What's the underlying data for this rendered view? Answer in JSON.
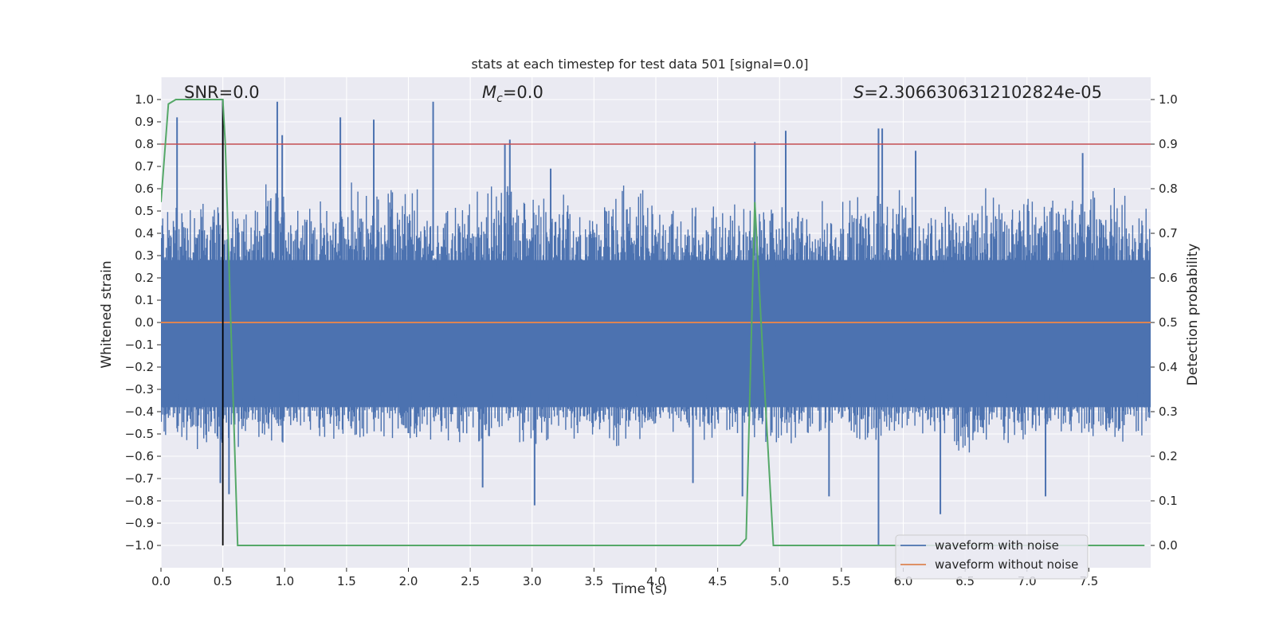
{
  "chart_data": {
    "type": "line",
    "title": "stats at each timestep for test data 501 [signal=0.0]",
    "xlabel": "Time (s)",
    "ylabel": "Whitened strain",
    "ylabel_right": "Detection probability",
    "xlim": [
      0.0,
      8.0
    ],
    "ylim": [
      -1.1,
      1.1
    ],
    "ylim_right": [
      -0.05,
      1.05
    ],
    "x_ticks": [
      0.0,
      0.5,
      1.0,
      1.5,
      2.0,
      2.5,
      3.0,
      3.5,
      4.0,
      4.5,
      5.0,
      5.5,
      6.0,
      6.5,
      7.0,
      7.5
    ],
    "y_ticks": [
      1.0,
      0.9,
      0.8,
      0.7,
      0.6,
      0.5,
      0.4,
      0.3,
      0.2,
      0.1,
      0.0,
      -0.1,
      -0.2,
      -0.3,
      -0.4,
      -0.5,
      -0.6,
      -0.7,
      -0.8,
      -0.9,
      -1.0
    ],
    "y_ticks_right": [
      1.0,
      0.9,
      0.8,
      0.7,
      0.6,
      0.5,
      0.4,
      0.3,
      0.2,
      0.1,
      0.0
    ],
    "annotations": {
      "snr": "SNR=0.0",
      "mc_symbol": "M",
      "mc_sub": "c",
      "mc_value": "=0.0",
      "s_symbol": "S",
      "s_value": "=2.3066306312102824e-05"
    },
    "threshold": {
      "axis": "right",
      "value": 0.9,
      "color": "#c44e52"
    },
    "marker_line": {
      "x": 0.5,
      "y_range": [
        -1.0,
        1.0
      ],
      "color": "#000000"
    },
    "noise_envelope": {
      "x": [
        0.0,
        0.25,
        0.5,
        0.75,
        1.0,
        1.25,
        1.5,
        1.75,
        2.0,
        2.25,
        2.5,
        2.75,
        3.0,
        3.25,
        3.5,
        3.75,
        4.0,
        4.25,
        4.5,
        4.75,
        5.0,
        5.25,
        5.5,
        5.75,
        6.0,
        6.25,
        6.5,
        6.75,
        7.0,
        7.25,
        7.5,
        7.75,
        8.0
      ],
      "upper": [
        0.55,
        0.6,
        0.5,
        0.55,
        0.62,
        0.5,
        0.6,
        0.58,
        0.62,
        0.5,
        0.55,
        0.65,
        0.6,
        0.55,
        0.5,
        0.6,
        0.55,
        0.5,
        0.55,
        0.5,
        0.55,
        0.5,
        0.55,
        0.6,
        0.55,
        0.5,
        0.55,
        0.6,
        0.55,
        0.6,
        0.62,
        0.6,
        0.6
      ],
      "lower": [
        -0.5,
        -0.55,
        -0.6,
        -0.5,
        -0.55,
        -0.5,
        -0.55,
        -0.5,
        -0.55,
        -0.5,
        -0.55,
        -0.5,
        -0.55,
        -0.5,
        -0.5,
        -0.55,
        -0.5,
        -0.5,
        -0.55,
        -0.5,
        -0.55,
        -0.5,
        -0.5,
        -0.55,
        -0.5,
        -0.55,
        -0.6,
        -0.5,
        -0.55,
        -0.5,
        -0.5,
        -0.55,
        -0.5
      ],
      "peaks": [
        [
          0.13,
          0.92
        ],
        [
          0.5,
          1.0
        ],
        [
          0.94,
          0.99
        ],
        [
          0.98,
          0.84
        ],
        [
          1.45,
          0.92
        ],
        [
          1.72,
          0.91
        ],
        [
          2.2,
          0.99
        ],
        [
          2.78,
          0.8
        ],
        [
          2.82,
          0.82
        ],
        [
          3.15,
          0.69
        ],
        [
          4.8,
          0.81
        ],
        [
          5.05,
          0.86
        ],
        [
          5.8,
          0.87
        ],
        [
          5.83,
          0.87
        ],
        [
          6.1,
          0.77
        ],
        [
          7.45,
          0.76
        ],
        [
          0.48,
          -0.72
        ],
        [
          0.55,
          -0.77
        ],
        [
          3.02,
          -0.82
        ],
        [
          2.6,
          -0.74
        ],
        [
          4.7,
          -0.78
        ],
        [
          5.8,
          -1.0
        ],
        [
          6.3,
          -0.86
        ],
        [
          7.15,
          -0.78
        ],
        [
          5.4,
          -0.78
        ],
        [
          4.3,
          -0.72
        ]
      ]
    },
    "series": [
      {
        "name": "waveform with noise",
        "color": "#4c72b0",
        "axis": "left"
      },
      {
        "name": "waveform without noise",
        "color": "#dd8452",
        "axis": "left",
        "x": [
          0.0,
          8.0
        ],
        "y": [
          0.0,
          0.0
        ]
      },
      {
        "name": "detection probability",
        "color": "#55a868",
        "axis": "right",
        "x": [
          0.0,
          0.06,
          0.12,
          0.5,
          0.52,
          0.62,
          0.7,
          1.0,
          2.0,
          3.0,
          4.0,
          4.68,
          4.73,
          4.8,
          4.87,
          4.95,
          5.5,
          6.5,
          7.5,
          7.95
        ],
        "y": [
          0.77,
          0.99,
          1.0,
          1.0,
          0.9,
          0.0,
          0.0,
          0.0,
          0.0,
          0.0,
          0.0,
          0.0,
          0.015,
          0.77,
          0.4,
          0.0,
          0.0,
          0.0,
          0.0,
          0.0
        ]
      }
    ],
    "legend": {
      "placement": "bottom-right",
      "entries": [
        {
          "label": "waveform with noise",
          "color": "#4c72b0"
        },
        {
          "label": "waveform without noise",
          "color": "#dd8452"
        }
      ]
    },
    "grid": true,
    "colors": {
      "plot_bg": "#eaeaf2",
      "grid": "#ffffff",
      "text": "#262626"
    }
  }
}
